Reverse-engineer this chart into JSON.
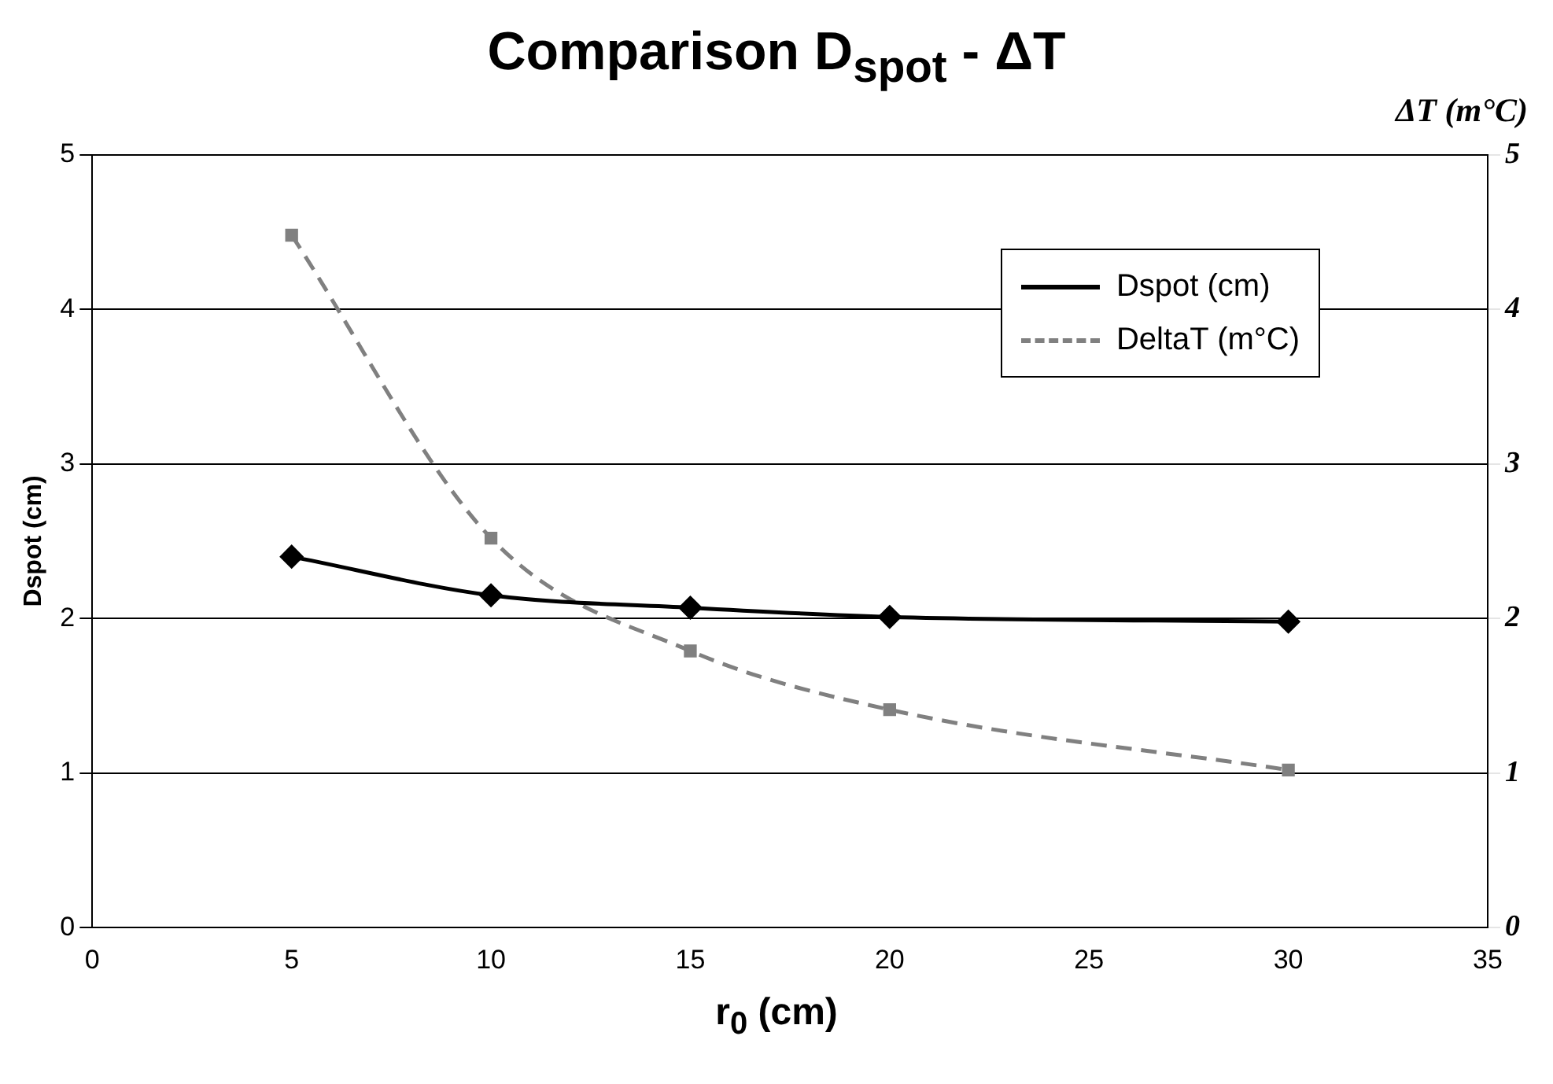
{
  "chart_data": {
    "type": "line",
    "title": "Comparison D$_{spot}$ - ΔT",
    "xlabel": "r$_{0}$ (cm)",
    "ylabel": "Dspot (cm)",
    "y2label": "ΔT (m°C)",
    "xlim": [
      0,
      35
    ],
    "xticks": [
      0,
      5,
      10,
      15,
      20,
      25,
      30,
      35
    ],
    "ylim": [
      0,
      5
    ],
    "yticks": [
      0,
      1,
      2,
      3,
      4,
      5
    ],
    "y2lim": [
      0,
      5
    ],
    "y2ticks": [
      0,
      1,
      2,
      3,
      4,
      5
    ],
    "grid": "y",
    "legend": "top right",
    "series": [
      {
        "name": "Dspot (cm)",
        "color": "#000000",
        "type": "line",
        "marker": "diamond",
        "line_style": "solid",
        "x": [
          5,
          10,
          15,
          20,
          30
        ],
        "values": [
          2.4,
          2.15,
          2.07,
          2.01,
          1.98
        ]
      },
      {
        "name": "DeltaT (m°C)",
        "color": "#808080",
        "type": "line",
        "marker": "square",
        "line_style": "dashed",
        "axis": "y2",
        "x": [
          5,
          10,
          15,
          20,
          30
        ],
        "values": [
          4.48,
          2.52,
          1.79,
          1.41,
          1.02
        ]
      }
    ]
  }
}
